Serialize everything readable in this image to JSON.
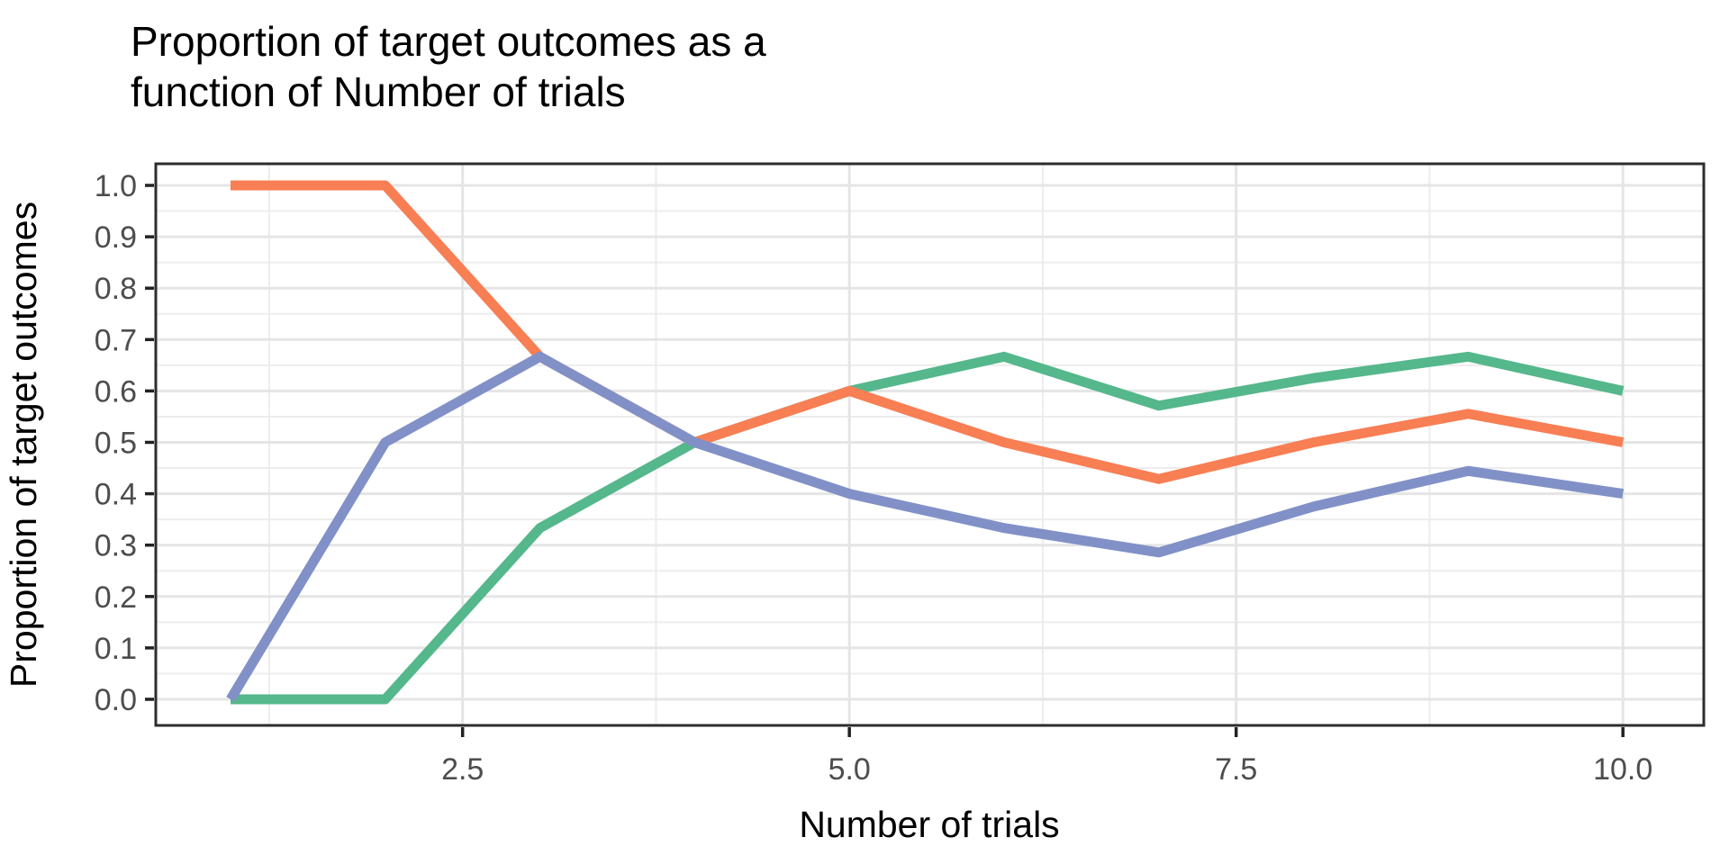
{
  "chart_data": {
    "type": "line",
    "title_lines": [
      "Proportion of target outcomes as a",
      "function of Number of trials"
    ],
    "xlabel": "Number of trials",
    "ylabel": "Proportion of target outcomes",
    "x": [
      1,
      2,
      3,
      4,
      5,
      6,
      7,
      8,
      9,
      10
    ],
    "series": [
      {
        "name": "green-series",
        "color": "#55B78C",
        "values": [
          0.0,
          0.0,
          0.3333,
          0.5,
          0.6,
          0.6667,
          0.5714,
          0.625,
          0.6667,
          0.6
        ]
      },
      {
        "name": "orange-series",
        "color": "#F87E54",
        "values": [
          1.0,
          1.0,
          0.6667,
          0.5,
          0.6,
          0.5,
          0.4286,
          0.5,
          0.5556,
          0.5
        ]
      },
      {
        "name": "blue-series",
        "color": "#8191C7",
        "values": [
          0.0,
          0.5,
          0.6667,
          0.5,
          0.4,
          0.3333,
          0.2857,
          0.375,
          0.4444,
          0.4
        ]
      }
    ],
    "x_ticks": [
      "2.5",
      "5.0",
      "7.5",
      "10.0"
    ],
    "x_tick_values": [
      2.5,
      5.0,
      7.5,
      10.0
    ],
    "x_minor_values": [
      1.25,
      3.75,
      6.25,
      8.75
    ],
    "y_ticks": [
      "1.0",
      "0.9",
      "0.8",
      "0.7",
      "0.6",
      "0.5",
      "0.4",
      "0.3",
      "0.2",
      "0.1",
      "0.0"
    ],
    "y_tick_values": [
      1.0,
      0.9,
      0.8,
      0.7,
      0.6,
      0.5,
      0.4,
      0.3,
      0.2,
      0.1,
      0.0
    ],
    "y_minor_values": [
      0.95,
      0.85,
      0.75,
      0.65,
      0.55,
      0.45,
      0.35,
      0.25,
      0.15,
      0.05
    ],
    "xlim": [
      1,
      10
    ],
    "ylim": [
      0.0,
      1.0
    ],
    "grid": "on",
    "legend": "none",
    "colors": {
      "major_grid": "#E5E5E5",
      "minor_grid": "#EDEDED",
      "panel_border": "#2D2D2D",
      "tick_mark": "#222222",
      "tick_label": "#4d4d4d",
      "title_text": "#000000",
      "panel_bg": "#FFFFFF"
    }
  }
}
